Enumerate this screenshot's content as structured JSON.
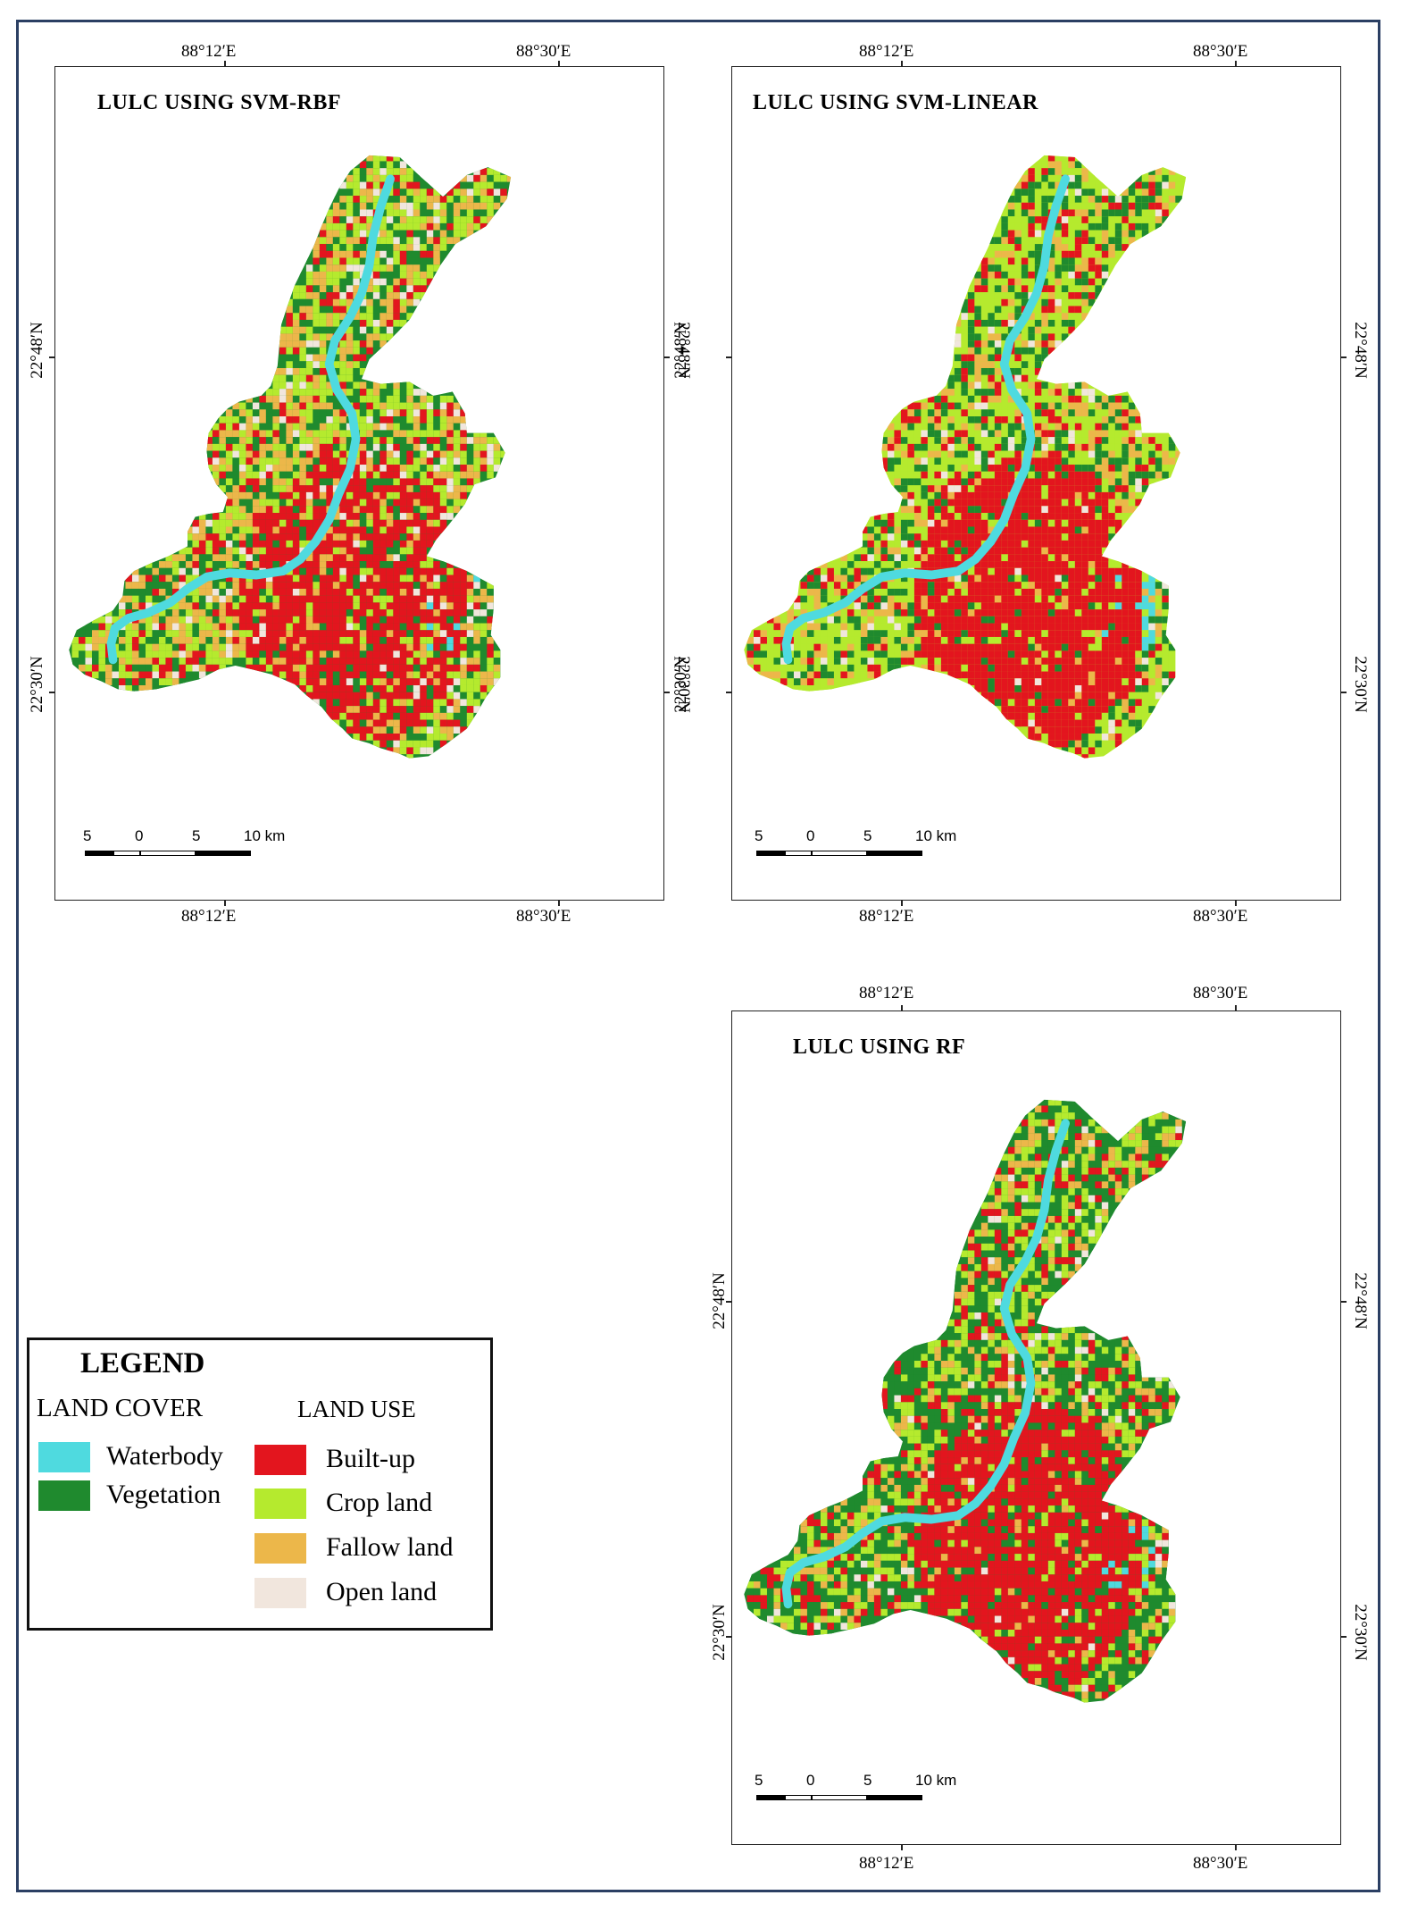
{
  "panels": [
    {
      "title": "LULC USING SVM-RBF",
      "lon_ticks": [
        "88°12′E",
        "88°30′E"
      ],
      "lat_ticks": [
        "22°48′N",
        "22°30′N"
      ],
      "scalebar": [
        "5",
        "0",
        "5",
        "10 km"
      ]
    },
    {
      "title": "LULC USING SVM-LINEAR",
      "lon_ticks": [
        "88°12′E",
        "88°30′E"
      ],
      "lat_ticks": [
        "22°48′N",
        "22°30′N"
      ],
      "scalebar": [
        "5",
        "0",
        "5",
        "10 km"
      ]
    },
    {
      "title": "LULC USING RF",
      "lon_ticks": [
        "88°12′E",
        "88°30′E"
      ],
      "lat_ticks": [
        "22°48′N",
        "22°30′N"
      ],
      "scalebar": [
        "5",
        "0",
        "5",
        "10 km"
      ]
    }
  ],
  "legend": {
    "heading": "LEGEND",
    "land_cover": {
      "title": "LAND COVER",
      "items": [
        {
          "label": "Waterbody",
          "color": "#4fdadf"
        },
        {
          "label": "Vegetation",
          "color": "#1f8a2e"
        }
      ]
    },
    "land_use": {
      "title": "LAND USE",
      "items": [
        {
          "label": "Built-up",
          "color": "#e3151e"
        },
        {
          "label": "Crop land",
          "color": "#b5ea2e"
        },
        {
          "label": "Fallow land",
          "color": "#ecb74a"
        },
        {
          "label": "Open land",
          "color": "#f1e6dd"
        }
      ]
    }
  }
}
